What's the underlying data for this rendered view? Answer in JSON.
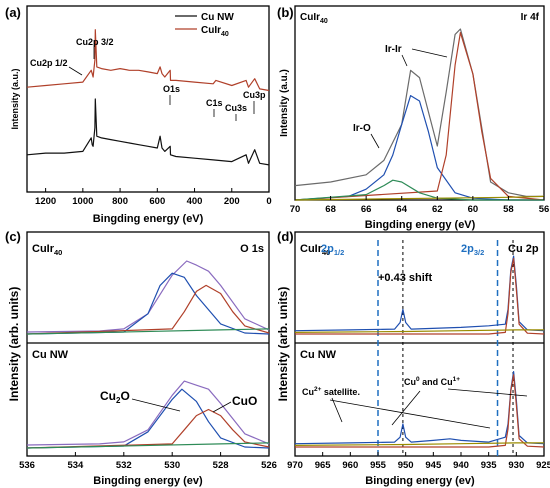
{
  "chart_data": [
    {
      "panel": "(a)",
      "type": "line",
      "title": "",
      "xlabel": "Bingding energy (eV)",
      "ylabel": "Intensity (a.u.)",
      "xlim": [
        1300,
        0
      ],
      "x_ticks": [
        "1200",
        "1000",
        "800",
        "600",
        "400",
        "200",
        "0"
      ],
      "legend": {
        "placement": "top-right",
        "entries": [
          "Cu NW",
          "CuIr40"
        ]
      },
      "annotations": [
        "Cu2p 1/2",
        "Cu2p 3/2",
        "O1s",
        "C1s",
        "Cu3s",
        "Cu3p"
      ],
      "series": [
        {
          "name": "CuIr40",
          "color": "#b0402a",
          "x": [
            1300,
            1200,
            1100,
            1000,
            955,
            950,
            945,
            935,
            933,
            925,
            900,
            850,
            800,
            750,
            700,
            650,
            600,
            585,
            575,
            560,
            531,
            529,
            500,
            400,
            300,
            285,
            200,
            123,
            110,
            77,
            50,
            0
          ],
          "y": [
            62,
            63,
            64,
            65,
            72,
            70,
            68,
            78,
            96,
            74,
            73,
            72,
            73,
            72,
            72,
            71,
            70,
            74,
            70,
            68,
            72,
            66,
            66,
            65,
            64,
            66,
            63,
            66,
            62,
            67,
            61,
            60
          ]
        },
        {
          "name": "Cu NW",
          "color": "#111111",
          "x": [
            1300,
            1200,
            1100,
            1000,
            955,
            950,
            945,
            935,
            933,
            925,
            900,
            850,
            800,
            750,
            700,
            650,
            600,
            585,
            575,
            560,
            531,
            529,
            500,
            400,
            300,
            200,
            123,
            110,
            77,
            50,
            0
          ],
          "y": [
            22,
            23,
            23,
            24,
            32,
            28,
            27,
            38,
            55,
            33,
            32,
            31,
            30,
            29,
            28,
            27,
            26,
            33,
            26,
            24,
            27,
            22,
            21,
            20,
            19,
            18,
            22,
            17,
            25,
            17,
            16
          ]
        }
      ]
    },
    {
      "panel": "(b)",
      "type": "line",
      "title": "",
      "xlabel": "Bingding energy (eV)",
      "ylabel": "Intensity (a.u.)",
      "xlim": [
        70,
        56
      ],
      "x_ticks": [
        "70",
        "68",
        "66",
        "64",
        "62",
        "60",
        "58",
        "56"
      ],
      "annotations": [
        "CuIr40",
        "Ir 4f",
        "Ir-Ir",
        "Ir-O"
      ],
      "series": [
        {
          "name": "",
          "color": "#6b6b6b",
          "x": [
            70,
            68,
            66,
            65,
            64,
            63.5,
            63,
            62,
            61.5,
            61,
            60.7,
            60,
            59.5,
            59,
            58,
            57,
            56
          ],
          "y": [
            8,
            10,
            14,
            22,
            42,
            72,
            68,
            30,
            60,
            92,
            95,
            70,
            40,
            10,
            4,
            2,
            2
          ]
        },
        {
          "name": "",
          "color": "#1f4fb0",
          "x": [
            70,
            67,
            66,
            65,
            64.5,
            64,
            63.5,
            63,
            62.5,
            62,
            61,
            60,
            58,
            56
          ],
          "y": [
            0,
            2,
            6,
            14,
            25,
            42,
            58,
            55,
            38,
            18,
            4,
            1,
            0,
            0
          ]
        },
        {
          "name": "",
          "color": "#b0402a",
          "x": [
            70,
            62,
            61.5,
            61,
            60.7,
            60,
            59.5,
            59,
            58,
            56
          ],
          "y": [
            0,
            5,
            25,
            75,
            93,
            70,
            38,
            12,
            2,
            0
          ]
        },
        {
          "name": "",
          "color": "#2e8b57",
          "x": [
            70,
            66,
            65,
            64.5,
            64,
            63,
            62,
            60,
            56
          ],
          "y": [
            0,
            3,
            8,
            11,
            10,
            4,
            1,
            0,
            0
          ]
        },
        {
          "name": "",
          "color": "#9a8c00",
          "x": [
            70,
            66,
            62,
            58,
            56
          ],
          "y": [
            0,
            0.5,
            1,
            1.5,
            2
          ]
        }
      ]
    },
    {
      "panel": "(c)",
      "type": "line",
      "title": "",
      "xlabel": "Bingding energy (ev)",
      "ylabel": "Intensity (arb. units)",
      "xlim": [
        536,
        526
      ],
      "x_ticks": [
        "536",
        "534",
        "532",
        "530",
        "528",
        "526"
      ],
      "annotations": [
        "CuIr40",
        "O 1s",
        "Cu NW",
        "Cu2O",
        "CuO"
      ],
      "subplots": [
        {
          "label": "CuIr40",
          "series": [
            {
              "name": "",
              "color": "#8a6bbf",
              "x": [
                536,
                533,
                532,
                531,
                530,
                529.4,
                529,
                528.5,
                528,
                527,
                526
              ],
              "y": [
                2,
                3,
                5,
                20,
                58,
                72,
                68,
                62,
                48,
                15,
                4
              ]
            },
            {
              "name": "",
              "color": "#1f4fb0",
              "x": [
                536,
                532,
                531,
                530.5,
                530,
                529.5,
                529,
                528,
                527,
                526
              ],
              "y": [
                0,
                2,
                20,
                48,
                60,
                56,
                38,
                10,
                1,
                0
              ]
            },
            {
              "name": "",
              "color": "#b0402a",
              "x": [
                536,
                530,
                529.5,
                529,
                528.6,
                528,
                527.5,
                527,
                526
              ],
              "y": [
                0,
                5,
                22,
                42,
                48,
                40,
                22,
                8,
                1
              ]
            },
            {
              "name": "",
              "color": "#2e8b57",
              "x": [
                536,
                532,
                528,
                526
              ],
              "y": [
                0,
                2,
                4,
                5
              ]
            }
          ]
        },
        {
          "label": "Cu NW",
          "series": [
            {
              "name": "",
              "color": "#8a6bbf",
              "x": [
                536,
                533,
                532,
                531,
                530,
                529.5,
                529,
                528.5,
                528,
                527,
                526
              ],
              "y": [
                3,
                4,
                6,
                18,
                52,
                66,
                62,
                58,
                44,
                14,
                4
              ]
            },
            {
              "name": "",
              "color": "#1f4fb0",
              "x": [
                536,
                532,
                531,
                530,
                529.6,
                529,
                528.5,
                528,
                527,
                526
              ],
              "y": [
                0,
                2,
                16,
                48,
                58,
                46,
                26,
                10,
                1,
                0
              ]
            },
            {
              "name": "",
              "color": "#b0402a",
              "x": [
                536,
                530,
                529.5,
                529,
                528.5,
                528,
                527.5,
                527,
                526
              ],
              "y": [
                0,
                4,
                18,
                32,
                38,
                32,
                18,
                6,
                1
              ]
            },
            {
              "name": "",
              "color": "#2e8b57",
              "x": [
                536,
                532,
                528,
                526
              ],
              "y": [
                0,
                2,
                4,
                5
              ]
            }
          ]
        }
      ]
    },
    {
      "panel": "(d)",
      "type": "line",
      "title": "",
      "xlabel": "Bingding energy (ev)",
      "ylabel": "Intensity (arb. units)",
      "xlim": [
        970,
        925
      ],
      "x_ticks": [
        "970",
        "965",
        "960",
        "955",
        "950",
        "945",
        "940",
        "935",
        "930",
        "925"
      ],
      "reference_lines": {
        "dashed_blue": [
          955.0,
          933.4
        ],
        "dashed_black": [
          950.5,
          930.6
        ]
      },
      "annotations": [
        "CuIr40",
        "2p1/2",
        "2p3/2",
        "Cu 2p",
        "+0.43 shift",
        "Cu NW",
        "Cu2+ satellite.",
        "Cu0 and Cu1+"
      ],
      "subplots": [
        {
          "label": "CuIr40",
          "series": [
            {
              "name": "",
              "color": "#1f4fb0",
              "x": [
                970,
                960,
                952,
                951,
                950.5,
                950,
                949,
                940,
                935,
                932,
                931.5,
                931,
                930.5,
                930,
                929.5,
                928,
                925
              ],
              "y": [
                4,
                5,
                6,
                14,
                30,
                14,
                6,
                8,
                10,
                12,
                30,
                78,
                95,
                60,
                15,
                5,
                4
              ]
            },
            {
              "name": "",
              "color": "#b0402a",
              "x": [
                970,
                935,
                932,
                931.5,
                931,
                930.5,
                930,
                929.5,
                928,
                925
              ],
              "y": [
                0,
                0,
                2,
                25,
                75,
                92,
                55,
                12,
                1,
                0
              ]
            },
            {
              "name": "",
              "color": "#9a8c00",
              "x": [
                970,
                950,
                940,
                930,
                925
              ],
              "y": [
                2,
                3,
                4,
                5,
                5
              ]
            }
          ]
        },
        {
          "label": "Cu NW",
          "series": [
            {
              "name": "",
              "color": "#1f4fb0",
              "x": [
                970,
                960,
                952,
                951,
                950.5,
                950,
                949,
                945,
                942,
                940,
                935,
                933,
                932,
                931.5,
                931,
                930.5,
                930,
                929.5,
                928,
                925
              ],
              "y": [
                4,
                5,
                6,
                12,
                28,
                12,
                6,
                8,
                10,
                8,
                6,
                10,
                12,
                28,
                70,
                92,
                58,
                14,
                5,
                4
              ]
            },
            {
              "name": "",
              "color": "#b0402a",
              "x": [
                970,
                935,
                932,
                931.5,
                931,
                930.5,
                930,
                929.5,
                928,
                925
              ],
              "y": [
                0,
                0,
                2,
                22,
                68,
                88,
                52,
                10,
                1,
                0
              ]
            },
            {
              "name": "",
              "color": "#9a8c00",
              "x": [
                970,
                950,
                940,
                930,
                925
              ],
              "y": [
                2,
                3,
                4,
                5,
                5
              ]
            }
          ]
        }
      ]
    }
  ],
  "labels": {
    "a": {
      "panel": "(a)",
      "ylabel": "Intensity (a.u.)",
      "xlabel": "Bingding energy (eV)",
      "legend1": "Cu NW",
      "legend2": "CuIr",
      "legend2_sub": "40",
      "cu2p12": "Cu2p 1/2",
      "cu2p32": "Cu2p 3/2",
      "o1s": "O1s",
      "c1s": "C1s",
      "cu3s": "Cu3s",
      "cu3p": "Cu3p"
    },
    "b": {
      "panel": "(b)",
      "name": "CuIr",
      "name_sub": "40",
      "tag": "Ir 4f",
      "ylabel": "Intensity (a.u.)",
      "xlabel": "Bingding energy (eV)",
      "irir": "Ir-Ir",
      "iro": "Ir-O"
    },
    "c": {
      "panel": "(c)",
      "name": "CuIr",
      "name_sub": "40",
      "tag": "O 1s",
      "name2": "Cu NW",
      "ylabel": "Intensity (arb. units)",
      "xlabel": "Bingding energy (ev)",
      "cu2o": "Cu",
      "cu2o_sub": "2",
      "cu2o_end": "O",
      "cuo": "CuO"
    },
    "d": {
      "panel": "(d)",
      "name": "CuIr",
      "name_sub": "40",
      "tag": "Cu 2p",
      "name2": "Cu NW",
      "ylabel": "Intensity (arb. units)",
      "xlabel": "Bingding energy (ev)",
      "p12": "2p",
      "p12_sub": "1/2",
      "p32": "2p",
      "p32_sub": "3/2",
      "shift": "+0.43 shift",
      "sat": "Cu",
      "sat_sup": "2+",
      "sat_end": " satellite.",
      "cu0": "Cu",
      "cu0_sup": "0",
      "cu0_mid": " and Cu",
      "cu1_sup": "1+"
    }
  }
}
